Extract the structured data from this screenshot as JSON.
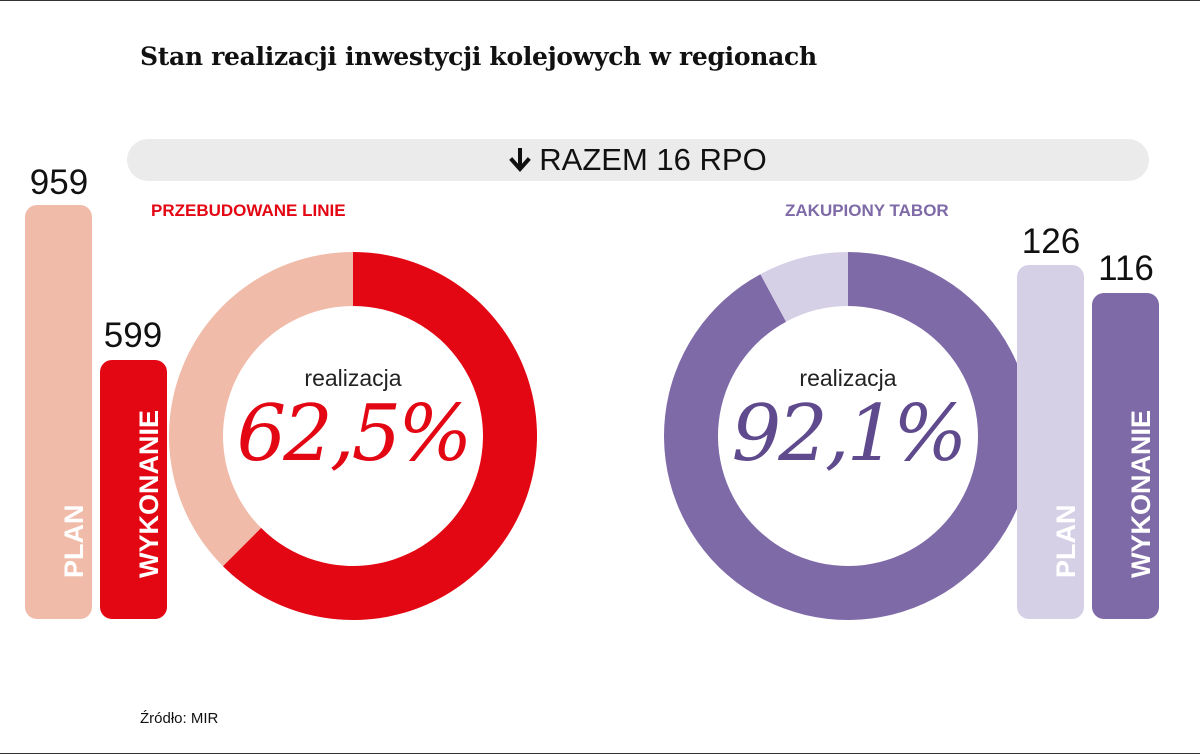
{
  "title": "Stan realizacji inwestycji kolejowych w regionach",
  "banner": {
    "icon": "arrow-down-icon",
    "label": "RAZEM 16 RPO"
  },
  "source": "Źródło: MIR",
  "colors": {
    "red": "#e30613",
    "red_light": "#f0bba8",
    "purple": "#7f6aa8",
    "purple_light": "#d6d0e7",
    "purple_text": "#5e4a8c",
    "banner_bg": "#ebebeb"
  },
  "chart_data": [
    {
      "type": "bar",
      "title": "PRZEBUDOWANE LINIE",
      "categories": [
        "PLAN",
        "WYKONANIE"
      ],
      "values": [
        959,
        599
      ],
      "value_labels": [
        "959",
        "599"
      ]
    },
    {
      "type": "pie",
      "title": "PRZEBUDOWANE LINIE",
      "caption": "realizacja",
      "percent_label": "62,5%",
      "slices": [
        {
          "label": "WYKONANIE",
          "value": 62.5
        },
        {
          "label": "PLAN",
          "value": 37.5
        }
      ]
    },
    {
      "type": "pie",
      "title": "ZAKUPIONY TABOR",
      "caption": "realizacja",
      "percent_label": "92,1%",
      "slices": [
        {
          "label": "WYKONANIE",
          "value": 92.1
        },
        {
          "label": "PLAN",
          "value": 7.9
        }
      ]
    },
    {
      "type": "bar",
      "title": "ZAKUPIONY TABOR",
      "categories": [
        "PLAN",
        "WYKONANIE"
      ],
      "values": [
        126,
        116
      ],
      "value_labels": [
        "126",
        "116"
      ]
    }
  ]
}
